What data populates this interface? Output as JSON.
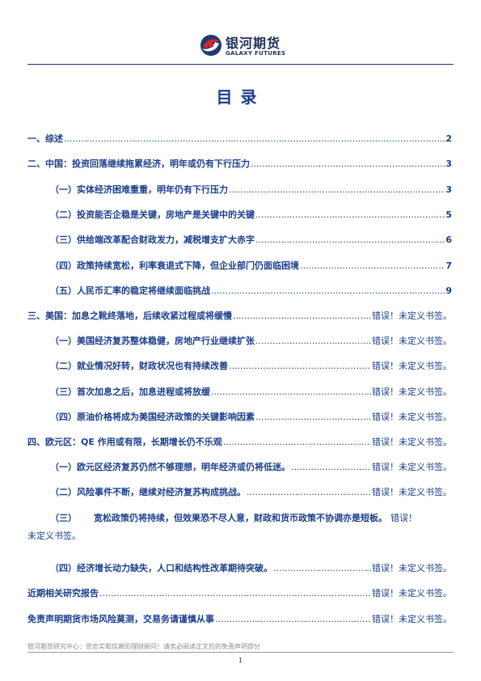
{
  "header": {
    "logo_cn": "银河期货",
    "logo_en": "GALAXY FUTURES"
  },
  "title": "目录",
  "toc": [
    {
      "num": "一、",
      "text": "综述",
      "page": "2"
    },
    {
      "num": "二、",
      "text": "中国：投资回落继续拖累经济，明年或仍有下行压力",
      "page": "3"
    },
    {
      "num": "（一）",
      "text": "实体经济困难重重，明年仍有下行压力",
      "page": "3"
    },
    {
      "num": "（二）",
      "text": "投资能否企稳是关键，房地产是关键中的关键",
      "page": "5"
    },
    {
      "num": "（三）",
      "text": "供给端改革配合财政发力，减税增支扩大赤字",
      "page": "6"
    },
    {
      "num": "（四）",
      "text": "政策持续宽松，利率衰退式下降，但企业部门仍面临困境",
      "page": "7"
    },
    {
      "num": "（五）",
      "text": "人民币汇率的稳定将继续面临挑战",
      "page": "9"
    },
    {
      "num": "三、",
      "text": "美国：加息之靴终落地，后续收紧过程或将缓慢",
      "page": "错误！未定义书签。"
    },
    {
      "num": "（一）",
      "text": "美国经济复苏整体稳健，房地产行业继续扩张",
      "page": "错误！未定义书签。"
    },
    {
      "num": "（二）",
      "text": "就业情况好转，财政状况也有持续改善",
      "page": "错误！未定义书签。"
    },
    {
      "num": "（三）",
      "text": "首次加息之后，加息进程或将放缓",
      "page": "错误！未定义书签。"
    },
    {
      "num": "（四）",
      "text": "原油价格将成为美国经济政策的关键影响因素",
      "page": "错误！未定义书签。"
    },
    {
      "num": "四、",
      "text": "欧元区：QE 作用或有限，长期增长仍不乐观",
      "page": "错误！未定义书签。"
    },
    {
      "num": "（一）",
      "text": "欧元区经济复苏仍然不够理想，明年经济或仍将低迷。",
      "page": "错误！未定义书签。"
    },
    {
      "num": "（二）",
      "text": "风险事件不断，继续对经济复苏构成挑战。",
      "page": "错误！未定义书签。"
    },
    {
      "num": "（三）",
      "text": "宽松政策仍将持续，但效果恐不尽人意，财政和货币政策不协调亦是短板。",
      "page": "错误！",
      "cont": "未定义书签。"
    },
    {
      "num": "（四）",
      "text": "经济增长动力缺失，人口和结构性改革期待突破。",
      "page": "错误！未定义书签。"
    },
    {
      "num": "",
      "text": "近期相关研究报告",
      "page": "错误！未定义书签。"
    },
    {
      "num": "免责声明",
      "text": "期货市场风险莫测，交易务请谨慎从事",
      "page": "错误！未定义书签。"
    }
  ],
  "footer": {
    "text": "银河期货研究中心：您忠实和信赖的理财顾问！请务必阅读正文后的免责声明部分",
    "page_number": "1"
  }
}
